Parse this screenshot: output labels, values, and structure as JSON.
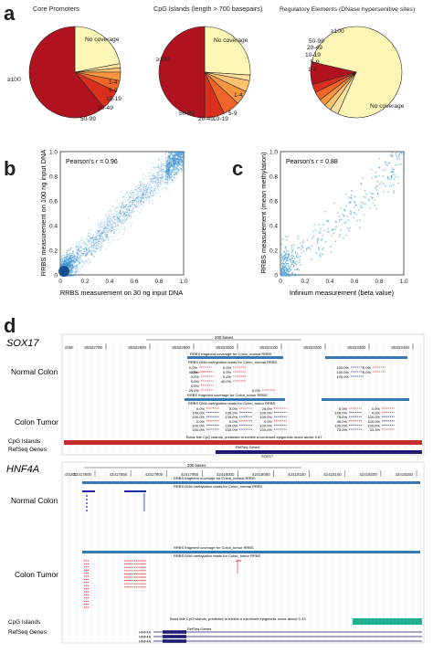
{
  "panels": {
    "a": "a",
    "b": "b",
    "c": "c",
    "d": "d"
  },
  "pies": [
    {
      "title": "Core Promoters",
      "slices": [
        {
          "label": "No coverage",
          "value": 22,
          "color": "#fdf6b5"
        },
        {
          "label": "1-4",
          "value": 1.5,
          "color": "#fde0a0"
        },
        {
          "label": "5-9",
          "value": 1.5,
          "color": "#fcc270"
        },
        {
          "label": "10-19",
          "value": 3,
          "color": "#f89540"
        },
        {
          "label": "20-49",
          "value": 4,
          "color": "#f06528"
        },
        {
          "label": "50-99",
          "value": 7,
          "color": "#d9301e"
        },
        {
          "label": "≥100",
          "value": 61,
          "color": "#b0121f"
        }
      ]
    },
    {
      "title": "CpG Islands (length > 700 basepairs)",
      "slices": [
        {
          "label": "No coverage",
          "value": 26,
          "color": "#fdf6b5"
        },
        {
          "label": "1-4",
          "value": 2,
          "color": "#fde0a0"
        },
        {
          "label": "5-9",
          "value": 4,
          "color": "#fcc270"
        },
        {
          "label": "10-19",
          "value": 5,
          "color": "#f89540"
        },
        {
          "label": "20-49",
          "value": 6,
          "color": "#f06528"
        },
        {
          "label": "50-99",
          "value": 7,
          "color": "#d9301e"
        },
        {
          "label": "≥100",
          "value": 50,
          "color": "#b0121f"
        }
      ]
    },
    {
      "title": "Regulatory Elements (DNase hypersenitive sites)",
      "slices": [
        {
          "label": "No coverage",
          "value": 78,
          "color": "#fdf6b5"
        },
        {
          "label": "1-4",
          "value": 3,
          "color": "#fde0a0"
        },
        {
          "label": "5-9",
          "value": 2.5,
          "color": "#fcc270"
        },
        {
          "label": "10-19",
          "value": 2.5,
          "color": "#f89540"
        },
        {
          "label": "20-49",
          "value": 3,
          "color": "#f06528"
        },
        {
          "label": "50-99",
          "value": 3,
          "color": "#d9301e"
        },
        {
          "label": "≥100",
          "value": 8,
          "color": "#b0121f"
        }
      ]
    }
  ],
  "chart_data": [
    {
      "type": "pie",
      "title": "Core Promoters",
      "categories": [
        "No coverage",
        "1-4",
        "5-9",
        "10-19",
        "20-49",
        "50-99",
        "≥100"
      ],
      "values": [
        22,
        1.5,
        1.5,
        3,
        4,
        7,
        61
      ]
    },
    {
      "type": "pie",
      "title": "CpG Islands (length > 700 basepairs)",
      "categories": [
        "No coverage",
        "1-4",
        "5-9",
        "10-19",
        "20-49",
        "50-99",
        "≥100"
      ],
      "values": [
        26,
        2,
        4,
        5,
        6,
        7,
        50
      ]
    },
    {
      "type": "pie",
      "title": "Regulatory Elements (DNase hypersenitive sites)",
      "categories": [
        "No coverage",
        "1-4",
        "5-9",
        "10-19",
        "20-49",
        "50-99",
        "≥100"
      ],
      "values": [
        78,
        3,
        2.5,
        2.5,
        3,
        3,
        8
      ]
    },
    {
      "type": "scatter",
      "annotation": "Pearson's r = 0.96",
      "xlabel": "RRBS measurement on 30 ng input DNA",
      "ylabel": "RRBS measurement on 100 ng input DNA",
      "xlim": [
        0,
        1
      ],
      "ylim": [
        0,
        1
      ],
      "xticks": [
        "0",
        "0.2",
        "0.4",
        "0.6",
        "0.8",
        "1.0"
      ],
      "yticks": [
        "0",
        "0.2",
        "0.4",
        "0.6",
        "0.8",
        "1.0"
      ]
    },
    {
      "type": "scatter",
      "annotation": "Pearson's r = 0.88",
      "xlabel": "Infinium measurement (beta value)",
      "ylabel": "RRBS measurement (mean methylation)",
      "xlim": [
        0,
        1
      ],
      "ylim": [
        0,
        1
      ],
      "xticks": [
        "0",
        "0.2",
        "0.4",
        "0.6",
        "0.8",
        "1.0"
      ],
      "yticks": [
        "0",
        "0.2",
        "0.4",
        "0.6",
        "0.8",
        "1.0"
      ]
    }
  ],
  "scatter_b": {
    "annotation_prefix": "Pearson's ",
    "annotation_r": "r",
    "annotation_value": " = 0.96",
    "xlabel": "RRBS measurement on 30 ng input DNA",
    "ylabel": "RRBS measurement on 100 ng input DNA",
    "ticks": [
      "0",
      "0.2",
      "0.4",
      "0.6",
      "0.8",
      "1.0"
    ],
    "color": "#3b8fd0"
  },
  "scatter_c": {
    "annotation_prefix": "Pearson's ",
    "annotation_r": "r",
    "annotation_value": " = 0.88",
    "xlabel": "Infinium measurement (beta value)",
    "ylabel": "RRBS measurement (mean methylation)",
    "ticks": [
      "0",
      "0.2",
      "0.4",
      "0.6",
      "0.8",
      "1.0"
    ],
    "color": "#5aa8dc"
  },
  "genome": {
    "sox17": {
      "gene": "SOX17",
      "chrom": "chr8:",
      "scale": "200 bases",
      "positions": [
        "55532700",
        "55532800",
        "55532900",
        "55533000",
        "55533100",
        "55533200",
        "55533300",
        "55533400"
      ],
      "normal_label": "Normal Colon",
      "tumor_label": "Colon Tumor",
      "cpg_label": "CpG Islands",
      "refseq_label": "RefSeq Genes",
      "normal_coverage_title": "RRBS fragment coverage for Colon_normal RRBS",
      "normal_meth_title": "RRBS DNA methylation reads for Colon_normal RRBS",
      "tumor_coverage_title": "RRBS fragment coverage for Colon_tumor RRBS",
      "tumor_meth_title": "RRBS DNA methylation reads for Colon_tumor RRBS",
      "cpg_title": "Bona fide CpG islands, predicted to exhibit a combined epigenetic score above 0.67",
      "refseq_title": "RefSeq Genes",
      "gene_label": "SOX17",
      "normal_values": [
        "0.0%",
        "0.0%",
        "0.0%",
        "0.0%",
        "0.0%",
        "40.0%",
        "0.0%",
        "0.0%",
        "0.0%",
        "0.0%",
        "25.0%",
        "0.0%",
        "100.0%",
        "100.0%",
        "100.0%",
        "0.0%",
        "0.0%"
      ],
      "tumor_values": [
        "0.0%",
        "100.0%",
        "100.0%",
        "0.0%",
        "100.0%",
        "100.0%",
        "0.0%",
        "100.0%",
        "100.0%",
        "0.0%",
        "100.0%",
        "100.0%",
        "25.0%",
        "100.0%",
        "100.0%",
        "0.0%",
        "100.0%",
        "100.0%",
        "0.0%",
        "100.0%",
        "75.0%",
        "40.0%",
        "100.0%",
        "75.0%",
        "0.0%",
        "0.0%",
        "100.0%",
        "100.0%",
        "100.0%",
        "33.3%"
      ]
    },
    "hnf4a": {
      "gene": "HNF4A",
      "chrom": "chr20:",
      "scale": "200 bases",
      "positions": [
        "42417800",
        "42417850",
        "42417900",
        "42417950",
        "42418000",
        "42418050",
        "42418100",
        "42418150",
        "42418200",
        "42418250"
      ],
      "normal_label": "Normal Colon",
      "tumor_label": "Colon Tumor",
      "cpg_label": "CpG Islands",
      "refseq_label": "RefSeq Genes",
      "normal_coverage_title": "RRBS fragment coverage for Colon_normal RRBS",
      "normal_meth_title": "RRBS DNA methylation reads for Colon_normal RRBS",
      "tumor_coverage_title": "RRBS fragment coverage for Colon_tumor RRBS",
      "tumor_meth_title": "RRBS DNA methylation reads for Colon_tumor RRBS",
      "cpg_title": "Bona fide CpG islands, predicted to exhibit a combined epigenetic score above 0.33",
      "refseq_title": "RefSeq Genes",
      "gene_labels": [
        "HNF4A",
        "HNF4A",
        "HNF4A"
      ]
    }
  }
}
